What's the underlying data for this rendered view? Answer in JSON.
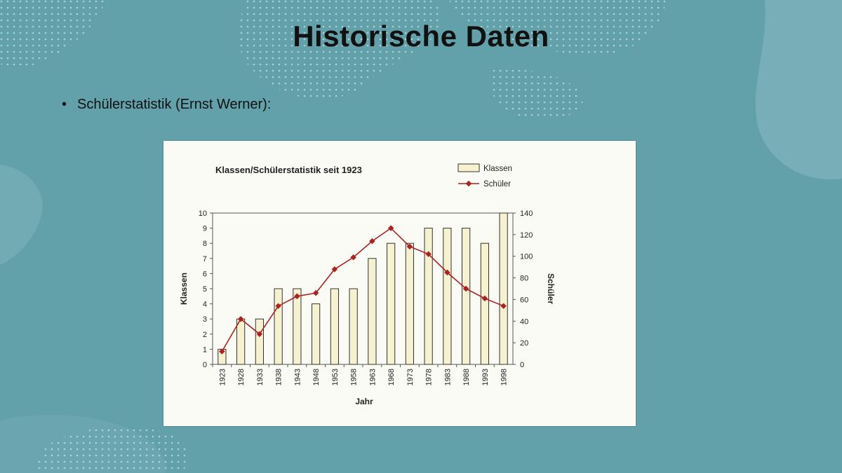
{
  "slide": {
    "title": "Historische Daten",
    "bullet_symbol": "•",
    "bullet_text": "Schülerstatistik (Ernst Werner):"
  },
  "colors": {
    "background": "#62a0aa",
    "bar_fill": "#f6f1cf",
    "line": "#b0201f"
  },
  "chart_data": {
    "type": "bar",
    "title": "Klassen/Schülerstatistik seit 1923",
    "xlabel": "Jahr",
    "ylabel": "Klassen",
    "y2label": "Schüler",
    "categories": [
      "1923",
      "1928",
      "1933",
      "1938",
      "1943",
      "1948",
      "1953",
      "1958",
      "1963",
      "1968",
      "1973",
      "1978",
      "1983",
      "1988",
      "1993",
      "1998"
    ],
    "ylim": [
      0,
      10
    ],
    "y2lim": [
      0,
      140
    ],
    "yticks": [
      0,
      1,
      2,
      3,
      4,
      5,
      6,
      7,
      8,
      9,
      10
    ],
    "y2ticks": [
      0,
      20,
      40,
      60,
      80,
      100,
      120,
      140
    ],
    "legend_position": "top-right",
    "grid": false,
    "series": [
      {
        "name": "Klassen",
        "type": "bar",
        "axis": "left",
        "values": [
          1,
          3,
          3,
          5,
          5,
          4,
          5,
          5,
          7,
          8,
          8,
          9,
          9,
          9,
          8,
          10
        ]
      },
      {
        "name": "Schüler",
        "type": "line",
        "axis": "right",
        "marker": "diamond",
        "values": [
          12,
          42,
          28,
          54,
          63,
          66,
          88,
          99,
          114,
          126,
          109,
          102,
          85,
          70,
          61,
          54
        ]
      }
    ]
  }
}
